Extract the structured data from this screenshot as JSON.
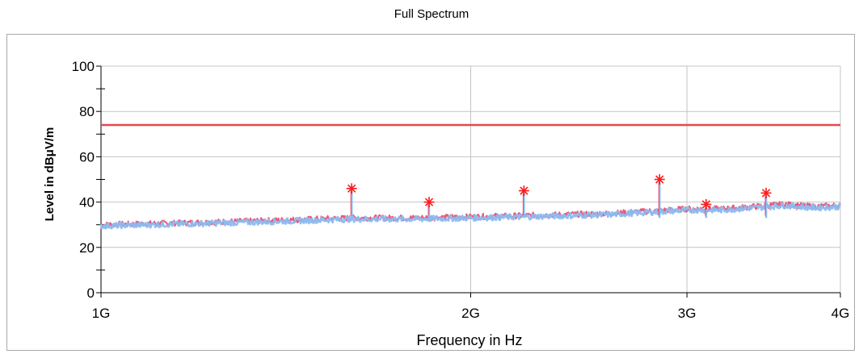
{
  "chart_data": {
    "type": "line",
    "title": "Full Spectrum",
    "xlabel": "Frequency in Hz",
    "ylabel": "Level in dBμV/m",
    "x_scale": "log",
    "xlim": [
      1000000000,
      4000000000
    ],
    "ylim": [
      0,
      100
    ],
    "x_ticks": [
      {
        "value": 1000000000,
        "label": "1G"
      },
      {
        "value": 2000000000,
        "label": "2G"
      },
      {
        "value": 3000000000,
        "label": "3G"
      },
      {
        "value": 4000000000,
        "label": "4G"
      }
    ],
    "y_ticks": [
      {
        "value": 0,
        "label": "0"
      },
      {
        "value": 20,
        "label": "20"
      },
      {
        "value": 40,
        "label": "40"
      },
      {
        "value": 60,
        "label": "60"
      },
      {
        "value": 80,
        "label": "80"
      },
      {
        "value": 100,
        "label": "100"
      }
    ],
    "grid": true,
    "limit_line": {
      "value": 74,
      "color": "#e8474c"
    },
    "series": [
      {
        "color": "#e8476a",
        "x": [
          1000000000,
          1200000000,
          1400000000,
          1600000000,
          1800000000,
          2000000000,
          2200000000,
          2400000000,
          2600000000,
          2800000000,
          3000000000,
          3200000000,
          3400000000,
          3600000000,
          3800000000,
          4000000000
        ],
        "values": [
          30,
          31,
          32,
          33,
          33,
          33.5,
          34,
          34.5,
          35,
          36,
          37,
          37,
          38,
          39,
          38,
          38.5
        ]
      },
      {
        "color": "#8cbcf0",
        "x": [
          1000000000,
          1200000000,
          1400000000,
          1600000000,
          1800000000,
          2000000000,
          2200000000,
          2400000000,
          2600000000,
          2800000000,
          3000000000,
          3200000000,
          3400000000,
          3600000000,
          3800000000,
          4000000000
        ],
        "values": [
          29.5,
          30.5,
          31.5,
          32.5,
          32.5,
          33,
          33.5,
          34,
          34.5,
          35.5,
          36.5,
          36.5,
          37.5,
          38.5,
          37.5,
          38
        ]
      }
    ],
    "spikes": [
      {
        "x": 1600000000,
        "value": 45
      },
      {
        "x": 1850000000,
        "value": 39
      },
      {
        "x": 2210000000,
        "value": 44
      },
      {
        "x": 2850000000,
        "value": 49
      },
      {
        "x": 3110000000,
        "value": 38
      },
      {
        "x": 3480000000,
        "value": 43
      }
    ],
    "markers": [
      {
        "x": 1600000000,
        "value": 46
      },
      {
        "x": 1850000000,
        "value": 40
      },
      {
        "x": 2210000000,
        "value": 45
      },
      {
        "x": 2850000000,
        "value": 50
      },
      {
        "x": 3110000000,
        "value": 39
      },
      {
        "x": 3480000000,
        "value": 44
      }
    ],
    "marker_color": "#ff1a1a"
  }
}
